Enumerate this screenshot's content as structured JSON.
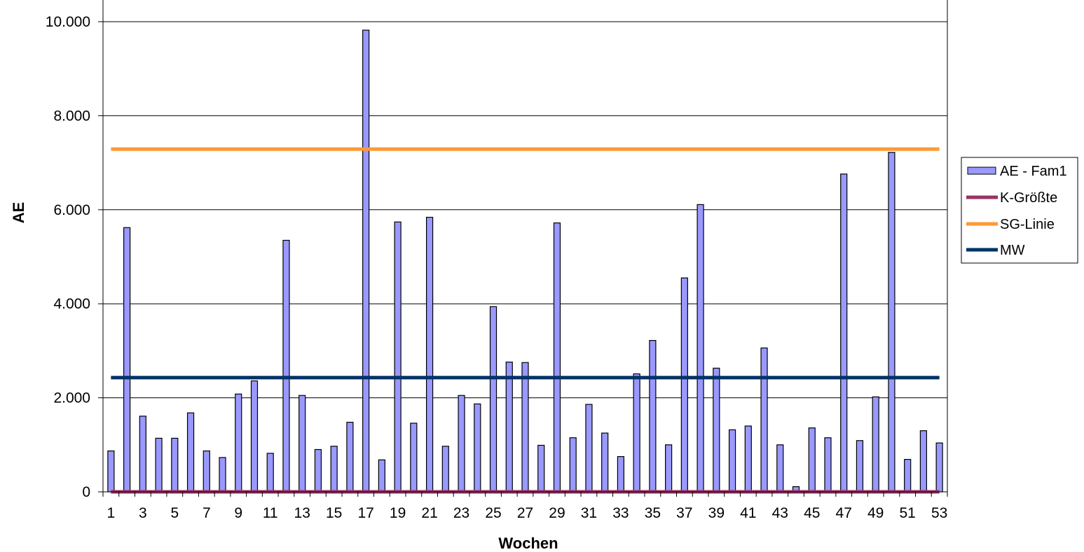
{
  "chart_data": {
    "type": "bar",
    "xlabel": "Wochen",
    "ylabel": "AE",
    "ylim": [
      0,
      10000
    ],
    "yticks": [
      0,
      2000,
      4000,
      6000,
      8000,
      10000
    ],
    "ytick_labels": [
      "0",
      "2.000",
      "4.000",
      "6.000",
      "8.000",
      "10.000"
    ],
    "categories": [
      1,
      2,
      3,
      4,
      5,
      6,
      7,
      8,
      9,
      10,
      11,
      12,
      13,
      14,
      15,
      16,
      17,
      18,
      19,
      20,
      21,
      22,
      23,
      24,
      25,
      26,
      27,
      28,
      29,
      30,
      31,
      32,
      33,
      34,
      35,
      36,
      37,
      38,
      39,
      40,
      41,
      42,
      43,
      44,
      45,
      46,
      47,
      48,
      49,
      50,
      51,
      52,
      53
    ],
    "xtick_labels": [
      "1",
      "3",
      "5",
      "7",
      "9",
      "11",
      "13",
      "15",
      "17",
      "19",
      "21",
      "23",
      "25",
      "27",
      "29",
      "31",
      "33",
      "35",
      "37",
      "39",
      "41",
      "43",
      "45",
      "47",
      "49",
      "51",
      "53"
    ],
    "grid": "horizontal",
    "legend_position": "right",
    "series": [
      {
        "name": "AE - Fam1",
        "kind": "bar",
        "color": "#9999FF",
        "values": [
          870,
          5620,
          1610,
          1140,
          1140,
          1680,
          870,
          730,
          2080,
          2360,
          820,
          5350,
          2050,
          900,
          970,
          1480,
          9820,
          680,
          5740,
          1460,
          5840,
          970,
          2050,
          1870,
          3940,
          2760,
          2750,
          990,
          5720,
          1150,
          1860,
          1250,
          750,
          2510,
          3220,
          1000,
          4550,
          6110,
          2630,
          1320,
          1400,
          3060,
          1000,
          110,
          1360,
          1150,
          6760,
          1090,
          2020,
          7220,
          690,
          1300,
          1040
        ]
      },
      {
        "name": "K-Größte",
        "kind": "line",
        "color": "#993366",
        "value": 0
      },
      {
        "name": "SG-Linie",
        "kind": "line",
        "color": "#FF9933",
        "value": 7290
      },
      {
        "name": "MW",
        "kind": "line",
        "color": "#003366",
        "value": 2430
      }
    ]
  }
}
